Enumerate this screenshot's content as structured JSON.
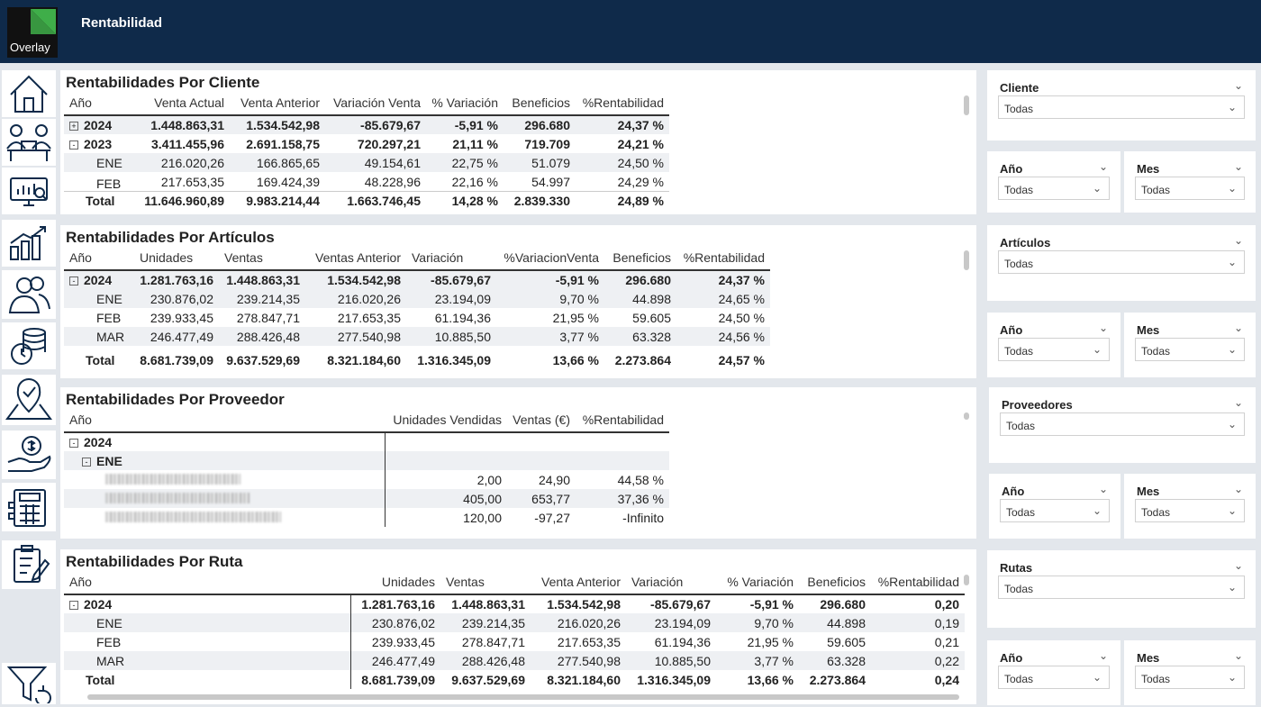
{
  "app": {
    "title": "Rentabilidad",
    "logo_text": "Overlay"
  },
  "sidebar": {
    "items": [
      "home-icon",
      "team-meeting-icon",
      "monitor-chart-icon",
      "growth-chart-icon",
      "users-icon",
      "coins-clock-icon",
      "map-check-icon",
      "money-hand-icon",
      "calculator-icon",
      "clipboard-icon",
      "filter-reset-icon"
    ]
  },
  "panels": {
    "cliente": {
      "title": "Rentabilidades Por Cliente",
      "headers": [
        "Año",
        "Venta Actual",
        "Venta Anterior",
        "Variación Venta",
        "% Variación",
        "Beneficios",
        "%Rentabilidad"
      ],
      "rows": [
        {
          "label": "2024",
          "exp": "+",
          "values": [
            "1.448.863,31",
            "1.534.542,98",
            "-85.679,67",
            "-5,91 %",
            "296.680",
            "24,37 %"
          ]
        },
        {
          "label": "2023",
          "exp": "-",
          "values": [
            "3.411.455,96",
            "2.691.158,75",
            "720.297,21",
            "21,11 %",
            "719.709",
            "24,21 %"
          ]
        },
        {
          "label": "ENE",
          "values": [
            "216.020,26",
            "166.865,65",
            "49.154,61",
            "22,75 %",
            "51.079",
            "24,50 %"
          ]
        },
        {
          "label": "FEB",
          "values": [
            "217.653,35",
            "169.424,39",
            "48.228,96",
            "22,16 %",
            "54.997",
            "24,29 %"
          ]
        }
      ],
      "total": {
        "label": "Total",
        "values": [
          "11.646.960,89",
          "9.983.214,44",
          "1.663.746,45",
          "14,28 %",
          "2.839.330",
          "24,89 %"
        ]
      }
    },
    "articulos": {
      "title": "Rentabilidades Por Artículos",
      "headers": [
        "Año",
        "Unidades",
        "Ventas",
        "Ventas Anterior",
        "Variación",
        "%VariacionVenta",
        "Beneficios",
        "%Rentabilidad"
      ],
      "rows": [
        {
          "label": "2024",
          "exp": "-",
          "values": [
            "1.281.763,16",
            "1.448.863,31",
            "1.534.542,98",
            "-85.679,67",
            "-5,91 %",
            "296.680",
            "24,37 %"
          ]
        },
        {
          "label": "ENE",
          "values": [
            "230.876,02",
            "239.214,35",
            "216.020,26",
            "23.194,09",
            "9,70 %",
            "44.898",
            "24,65 %"
          ]
        },
        {
          "label": "FEB",
          "values": [
            "239.933,45",
            "278.847,71",
            "217.653,35",
            "61.194,36",
            "21,95 %",
            "59.605",
            "24,50 %"
          ]
        },
        {
          "label": "MAR",
          "values": [
            "246.477,49",
            "288.426,48",
            "277.540,98",
            "10.885,50",
            "3,77 %",
            "63.328",
            "24,56 %"
          ]
        }
      ],
      "total": {
        "label": "Total",
        "values": [
          "8.681.739,09",
          "9.637.529,69",
          "8.321.184,60",
          "1.316.345,09",
          "13,66 %",
          "2.273.864",
          "24,57 %"
        ]
      }
    },
    "proveedor": {
      "title": "Rentabilidades Por Proveedor",
      "headers": [
        "Año",
        "Unidades Vendidas",
        "Ventas (€)",
        "%Rentabilidad"
      ],
      "year": "2024",
      "month": "ENE",
      "rows": [
        {
          "values": [
            "2,00",
            "24,90",
            "44,58 %"
          ]
        },
        {
          "values": [
            "405,00",
            "653,77",
            "37,36 %"
          ]
        },
        {
          "values": [
            "120,00",
            "-97,27",
            "-Infinito"
          ]
        }
      ]
    },
    "ruta": {
      "title": "Rentabilidades Por Ruta",
      "headers": [
        "Año",
        "Unidades",
        "Ventas",
        "Venta Anterior",
        "Variación",
        "% Variación",
        "Beneficios",
        "%Rentabilidad"
      ],
      "rows": [
        {
          "label": "2024",
          "exp": "-",
          "values": [
            "1.281.763,16",
            "1.448.863,31",
            "1.534.542,98",
            "-85.679,67",
            "-5,91 %",
            "296.680",
            "0,20"
          ]
        },
        {
          "label": "ENE",
          "values": [
            "230.876,02",
            "239.214,35",
            "216.020,26",
            "23.194,09",
            "9,70 %",
            "44.898",
            "0,19"
          ]
        },
        {
          "label": "FEB",
          "values": [
            "239.933,45",
            "278.847,71",
            "217.653,35",
            "61.194,36",
            "21,95 %",
            "59.605",
            "0,21"
          ]
        },
        {
          "label": "MAR",
          "values": [
            "246.477,49",
            "288.426,48",
            "277.540,98",
            "10.885,50",
            "3,77 %",
            "63.328",
            "0,22"
          ]
        }
      ],
      "total": {
        "label": "Total",
        "values": [
          "8.681.739,09",
          "9.637.529,69",
          "8.321.184,60",
          "1.316.345,09",
          "13,66 %",
          "2.273.864",
          "0,24"
        ]
      }
    }
  },
  "slicers": {
    "cliente": {
      "title": "Cliente",
      "value": "Todas"
    },
    "anio1": {
      "title": "Año",
      "value": "Todas"
    },
    "mes1": {
      "title": "Mes",
      "value": "Todas"
    },
    "articulos": {
      "title": "Artículos",
      "value": "Todas"
    },
    "anio2": {
      "title": "Año",
      "value": "Todas"
    },
    "mes2": {
      "title": "Mes",
      "value": "Todas"
    },
    "proveedores": {
      "title": "Proveedores",
      "value": "Todas"
    },
    "anio3": {
      "title": "Año",
      "value": "Todas"
    },
    "mes3": {
      "title": "Mes",
      "value": "Todas"
    },
    "rutas": {
      "title": "Rutas",
      "value": "Todas"
    },
    "anio4": {
      "title": "Año",
      "value": "Todas"
    },
    "mes4": {
      "title": "Mes",
      "value": "Todas"
    }
  },
  "colors": {
    "header_bg": "#0f2a4a",
    "accent": "#3fae49",
    "page_bg": "#e3e7ec"
  }
}
